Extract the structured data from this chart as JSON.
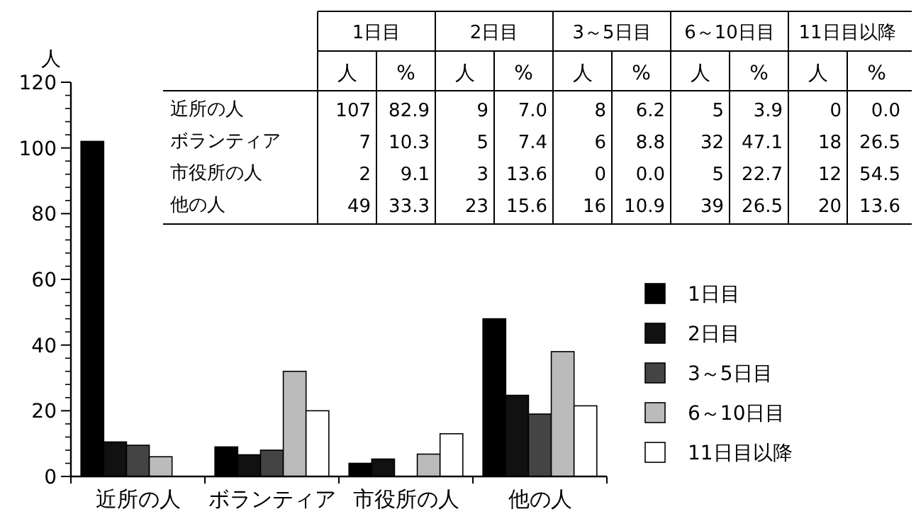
{
  "chart_data": [
    {
      "type": "bar",
      "ylabel": "人",
      "categories": [
        "近所の人",
        "ボランティア",
        "市役所の人",
        "他の人"
      ],
      "ylim": [
        0,
        120
      ],
      "yticks": [
        0,
        20,
        40,
        60,
        80,
        100,
        120
      ],
      "legend": "right",
      "series": [
        {
          "name": "1日目",
          "color": "#000000",
          "values": [
            102,
            9,
            4,
            48
          ]
        },
        {
          "name": "2日目",
          "color": "#111111",
          "values": [
            10.5,
            6.6,
            5.3,
            24.7
          ]
        },
        {
          "name": "3～5日目",
          "color": "#444444",
          "values": [
            9.5,
            8,
            0,
            19
          ]
        },
        {
          "name": "6～10日目",
          "color": "#bbbbbb",
          "values": [
            6,
            32,
            6.8,
            38
          ]
        },
        {
          "name": "11日目以降",
          "color": "#ffffff",
          "values": [
            0,
            20,
            13,
            21.5
          ]
        }
      ]
    },
    {
      "type": "heatmap",
      "categories": [
        "人",
        "%",
        "人",
        "%",
        "人",
        "%",
        "人",
        "%",
        "人",
        "%"
      ],
      "y_categories": [
        "近所の人",
        "ボランティア",
        "市役所の人",
        "他の人"
      ],
      "annotations": [
        "1日目",
        "2日目",
        "3～5日目",
        "6～10日目",
        "11日目以降"
      ],
      "cells": [
        [
          107,
          82.9,
          9,
          7.0,
          8,
          6.2,
          5,
          3.9,
          0,
          0.0
        ],
        [
          7,
          10.3,
          5,
          7.4,
          6,
          8.8,
          32,
          47.1,
          18,
          26.5
        ],
        [
          2,
          9.1,
          3,
          13.6,
          0,
          0.0,
          5,
          22.7,
          12,
          54.5
        ],
        [
          49,
          33.3,
          23,
          15.6,
          16,
          10.9,
          39,
          26.5,
          20,
          13.6
        ]
      ],
      "cell_labels": [
        [
          "107",
          "82.9",
          "9",
          "7.0",
          "8",
          "6.2",
          "5",
          "3.9",
          "0",
          "0.0"
        ],
        [
          "7",
          "10.3",
          "5",
          "7.4",
          "6",
          "8.8",
          "32",
          "47.1",
          "18",
          "26.5"
        ],
        [
          "2",
          "9.1",
          "3",
          "13.6",
          "0",
          "0.0",
          "5",
          "22.7",
          "12",
          "54.5"
        ],
        [
          "49",
          "33.3",
          "23",
          "15.6",
          "16",
          "10.9",
          "39",
          "26.5",
          "20",
          "13.6"
        ]
      ]
    }
  ]
}
